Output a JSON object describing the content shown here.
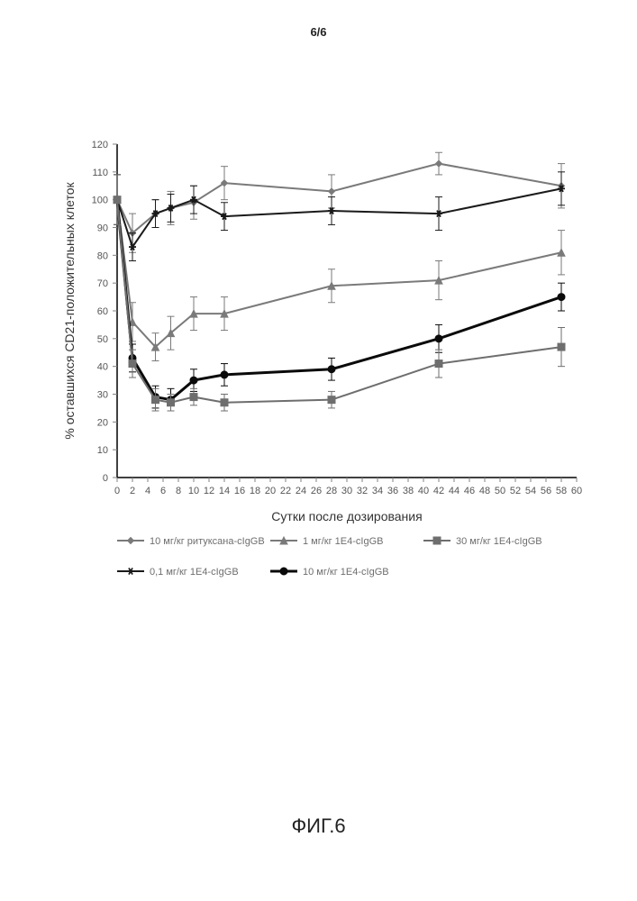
{
  "page_header": "6/6",
  "figure_label": "ФИГ.6",
  "chart": {
    "type": "line",
    "title": "",
    "xlabel": "Сутки после дозирования",
    "ylabel": "% оставшихся CD21-положительных клеток",
    "label_fontsize": 14,
    "tick_fontsize": 11,
    "xlim": [
      0,
      60
    ],
    "ylim": [
      0,
      120
    ],
    "xtick_step": 2,
    "ytick_step": 10,
    "background_color": "#ffffff",
    "axis_color": "#000000",
    "tick_color": "#808080",
    "series": [
      {
        "id": "rituxan_10",
        "label": "10 мг/кг ритуксана-cIgGB",
        "color": "#7a7a7a",
        "line_width": 2,
        "marker": "diamond",
        "marker_size": 7,
        "x": [
          0,
          2,
          5,
          7,
          10,
          14,
          28,
          42,
          58
        ],
        "y": [
          100,
          88,
          95,
          97,
          99,
          106,
          103,
          113,
          105
        ],
        "err": [
          9,
          7,
          5,
          6,
          6,
          6,
          6,
          4,
          8
        ]
      },
      {
        "id": "1E4_0_1",
        "label": "0,1 мг/кг 1Е4-cIgGB",
        "color": "#1a1a1a",
        "line_width": 2,
        "marker": "star",
        "marker_size": 8,
        "x": [
          0,
          2,
          5,
          7,
          10,
          14,
          28,
          42,
          58
        ],
        "y": [
          100,
          83,
          95,
          97,
          100,
          94,
          96,
          95,
          104
        ],
        "err": [
          9,
          5,
          5,
          5,
          5,
          5,
          5,
          6,
          6
        ]
      },
      {
        "id": "1E4_1",
        "label": "1 мг/кг 1Е4-cIgGB",
        "color": "#7a7a7a",
        "line_width": 2,
        "marker": "triangle",
        "marker_size": 8,
        "x": [
          0,
          2,
          5,
          7,
          10,
          14,
          28,
          42,
          58
        ],
        "y": [
          100,
          56,
          47,
          52,
          59,
          59,
          69,
          71,
          81
        ],
        "err": [
          9,
          7,
          5,
          6,
          6,
          6,
          6,
          7,
          8
        ]
      },
      {
        "id": "1E4_10",
        "label": "10 мг/кг 1Е4-cIgGB",
        "color": "#0a0a0a",
        "line_width": 3,
        "marker": "circle",
        "marker_size": 8,
        "x": [
          0,
          2,
          5,
          7,
          10,
          14,
          28,
          42,
          58
        ],
        "y": [
          100,
          43,
          29,
          28,
          35,
          37,
          39,
          50,
          65
        ],
        "err": [
          9,
          5,
          4,
          4,
          4,
          4,
          4,
          5,
          5
        ]
      },
      {
        "id": "1E4_30",
        "label": "30 мг/кг 1Е4-cIgGB",
        "color": "#6e6e6e",
        "line_width": 2,
        "marker": "square",
        "marker_size": 8,
        "x": [
          0,
          2,
          5,
          7,
          10,
          14,
          28,
          42,
          58
        ],
        "y": [
          100,
          41,
          28,
          27,
          29,
          27,
          28,
          41,
          47
        ],
        "err": [
          9,
          5,
          4,
          3,
          3,
          3,
          3,
          5,
          7
        ]
      }
    ],
    "legend": {
      "rows": [
        [
          "rituxan_10",
          "1E4_1",
          "1E4_30"
        ],
        [
          "1E4_0_1",
          "1E4_10"
        ]
      ],
      "font_size": 11,
      "text_color": "#6e6e6e"
    }
  }
}
